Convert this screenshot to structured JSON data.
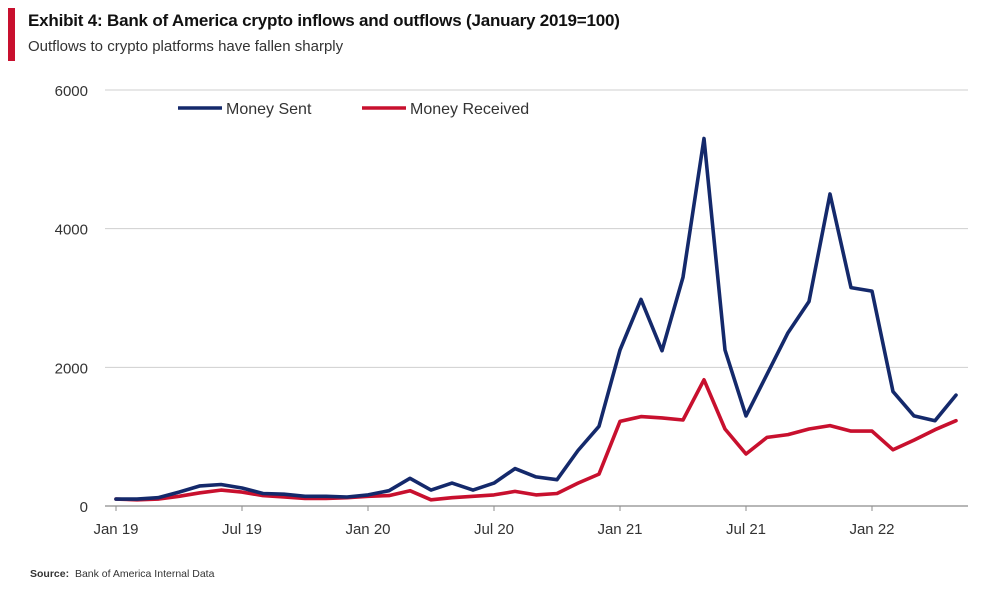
{
  "header": {
    "title": "Exhibit 4: Bank of America crypto inflows and outflows (January  2019=100)",
    "subtitle": "Outflows to crypto platforms have fallen sharply",
    "accent_color": "#c8102e"
  },
  "footer": {
    "source_label": "Source:",
    "source_text": "Bank of America Internal Data"
  },
  "chart_data": {
    "type": "line",
    "title": "Exhibit 4: Bank of America crypto inflows and outflows (January  2019=100)",
    "subtitle": "Outflows to crypto platforms have fallen sharply",
    "xlabel": "",
    "ylabel": "",
    "ylim": [
      0,
      6000
    ],
    "yticks": [
      0,
      2000,
      4000,
      6000
    ],
    "grid": "horizontal",
    "legend_position": "top-left",
    "x": [
      "2019-01",
      "2019-02",
      "2019-03",
      "2019-04",
      "2019-05",
      "2019-06",
      "2019-07",
      "2019-08",
      "2019-09",
      "2019-10",
      "2019-11",
      "2019-12",
      "2020-01",
      "2020-02",
      "2020-03",
      "2020-04",
      "2020-05",
      "2020-06",
      "2020-07",
      "2020-08",
      "2020-09",
      "2020-10",
      "2020-11",
      "2020-12",
      "2021-01",
      "2021-02",
      "2021-03",
      "2021-04",
      "2021-05",
      "2021-06",
      "2021-07",
      "2021-08",
      "2021-09",
      "2021-10",
      "2021-11",
      "2021-12",
      "2022-01",
      "2022-02",
      "2022-03",
      "2022-04",
      "2022-05"
    ],
    "xtick_labels": [
      {
        "x": "2019-01",
        "label": "Jan 19"
      },
      {
        "x": "2019-07",
        "label": "Jul 19"
      },
      {
        "x": "2020-01",
        "label": "Jan 20"
      },
      {
        "x": "2020-07",
        "label": "Jul 20"
      },
      {
        "x": "2021-01",
        "label": "Jan 21"
      },
      {
        "x": "2021-07",
        "label": "Jul 21"
      },
      {
        "x": "2022-01",
        "label": "Jan 22"
      }
    ],
    "series": [
      {
        "name": "Money Sent",
        "color": "#14296b",
        "values": [
          100,
          100,
          120,
          200,
          290,
          310,
          260,
          180,
          170,
          140,
          140,
          130,
          160,
          220,
          400,
          230,
          330,
          230,
          330,
          540,
          420,
          380,
          800,
          1150,
          2250,
          2980,
          2240,
          3300,
          5300,
          2250,
          1300,
          1900,
          2500,
          2950,
          4500,
          3150,
          3100,
          1650,
          1300,
          1230,
          1600
        ]
      },
      {
        "name": "Money Received",
        "color": "#c8102e",
        "values": [
          100,
          90,
          100,
          140,
          190,
          230,
          200,
          150,
          130,
          110,
          110,
          120,
          140,
          150,
          220,
          90,
          120,
          140,
          160,
          210,
          160,
          180,
          330,
          460,
          1220,
          1290,
          1270,
          1240,
          1820,
          1110,
          750,
          990,
          1030,
          1110,
          1160,
          1080,
          1080,
          810,
          950,
          1100,
          1230
        ]
      }
    ]
  }
}
